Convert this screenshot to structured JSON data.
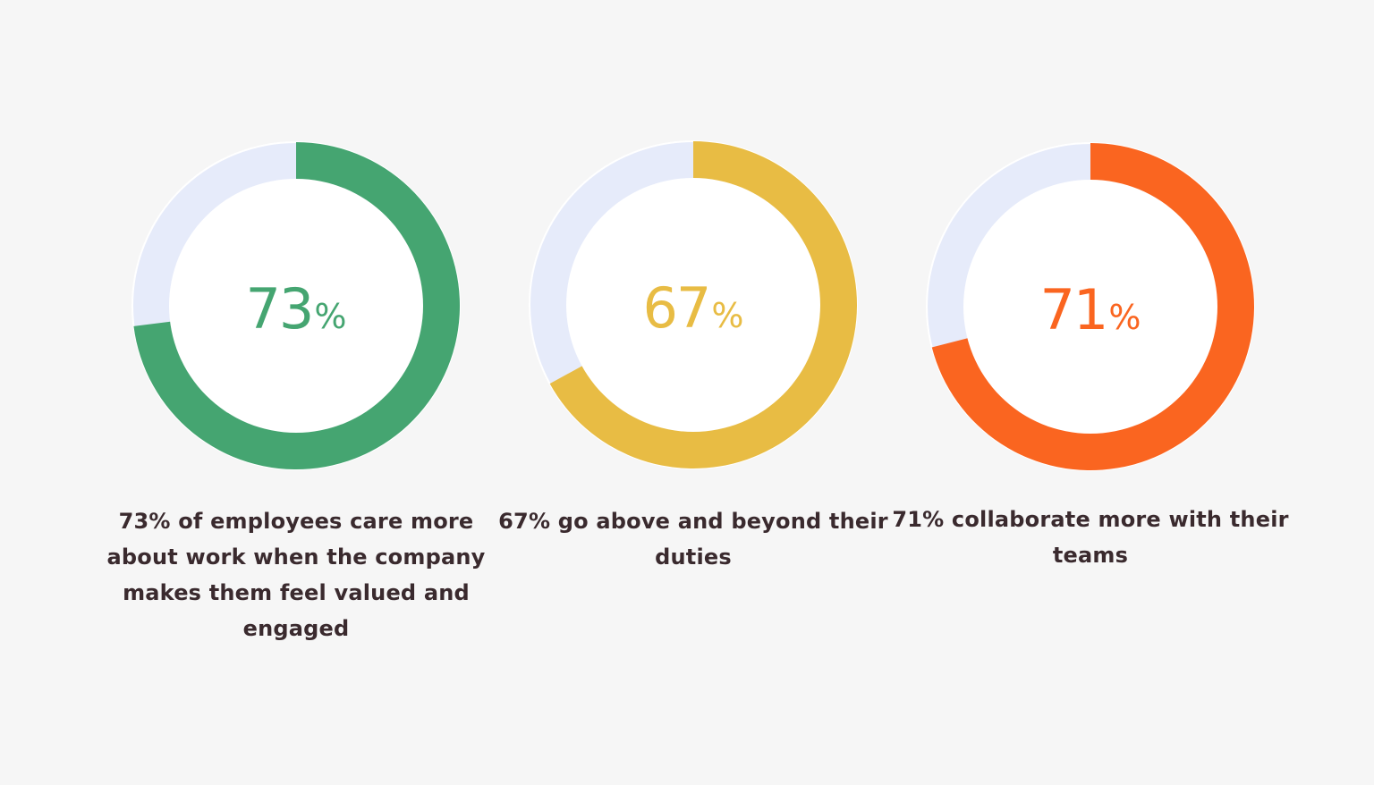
{
  "chart_data": [
    {
      "type": "pie",
      "value": 73,
      "value_label": "73",
      "unit_label": "%",
      "caption": "73% of employees care more about work when the company makes them feel valued and engaged",
      "colors": {
        "filled": "#45a571",
        "remainder": "#e6ebfa",
        "center": "#ffffff"
      }
    },
    {
      "type": "pie",
      "value": 67,
      "value_label": "67",
      "unit_label": "%",
      "caption": "67% go above and beyond their duties",
      "colors": {
        "filled": "#e8bc44",
        "remainder": "#e6ebfa",
        "center": "#ffffff"
      }
    },
    {
      "type": "pie",
      "value": 71,
      "value_label": "71",
      "unit_label": "%",
      "caption": "71% collaborate more with their teams",
      "colors": {
        "filled": "#fa6520",
        "remainder": "#e6ebfa",
        "center": "#ffffff"
      }
    }
  ]
}
